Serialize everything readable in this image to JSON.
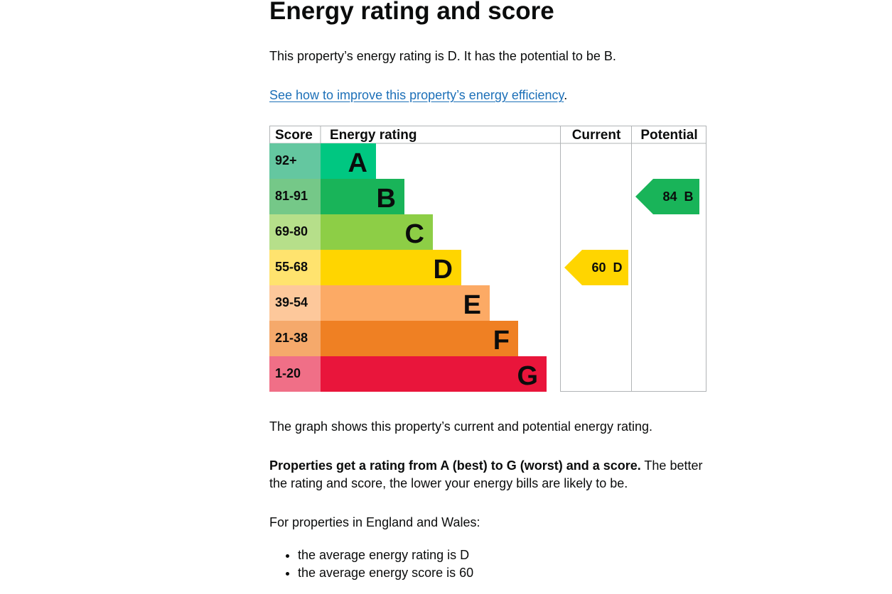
{
  "page": {
    "title": "Energy rating and score",
    "intro": "This property’s energy rating is D. It has the potential to be B.",
    "link_text": "See how to improve this property’s energy efficiency",
    "link_suffix": ".",
    "graph_caption": "The graph shows this property’s current and potential energy rating.",
    "rating_bold": "Properties get a rating from A (best) to G (worst) and a score.",
    "rating_rest": " The better the rating and score, the lower your energy bills are likely to be.",
    "region_text": "For properties in England and Wales:",
    "bullets": [
      "the average energy rating is D",
      "the average energy score is 60"
    ]
  },
  "chart_data": {
    "type": "bar",
    "headers": [
      "Score",
      "Energy rating",
      "Current",
      "Potential"
    ],
    "bands": [
      {
        "score": "92+",
        "letter": "A",
        "color": "#00c781",
        "score_bg": "#64c7a0"
      },
      {
        "score": "81-91",
        "letter": "B",
        "color": "#19b459",
        "score_bg": "#75c888"
      },
      {
        "score": "69-80",
        "letter": "C",
        "color": "#8dce46",
        "score_bg": "#b6df8a"
      },
      {
        "score": "55-68",
        "letter": "D",
        "color": "#ffd500",
        "score_bg": "#ffe36e"
      },
      {
        "score": "39-54",
        "letter": "E",
        "color": "#fcaa65",
        "score_bg": "#fdc89b"
      },
      {
        "score": "21-38",
        "letter": "F",
        "color": "#ef8023",
        "score_bg": "#f5a96b"
      },
      {
        "score": "1-20",
        "letter": "G",
        "color": "#e9153b",
        "score_bg": "#f06f87"
      }
    ],
    "current": {
      "value": 60,
      "letter": "D",
      "color": "#ffd500"
    },
    "potential": {
      "value": 84,
      "letter": "B",
      "color": "#19b459"
    }
  }
}
